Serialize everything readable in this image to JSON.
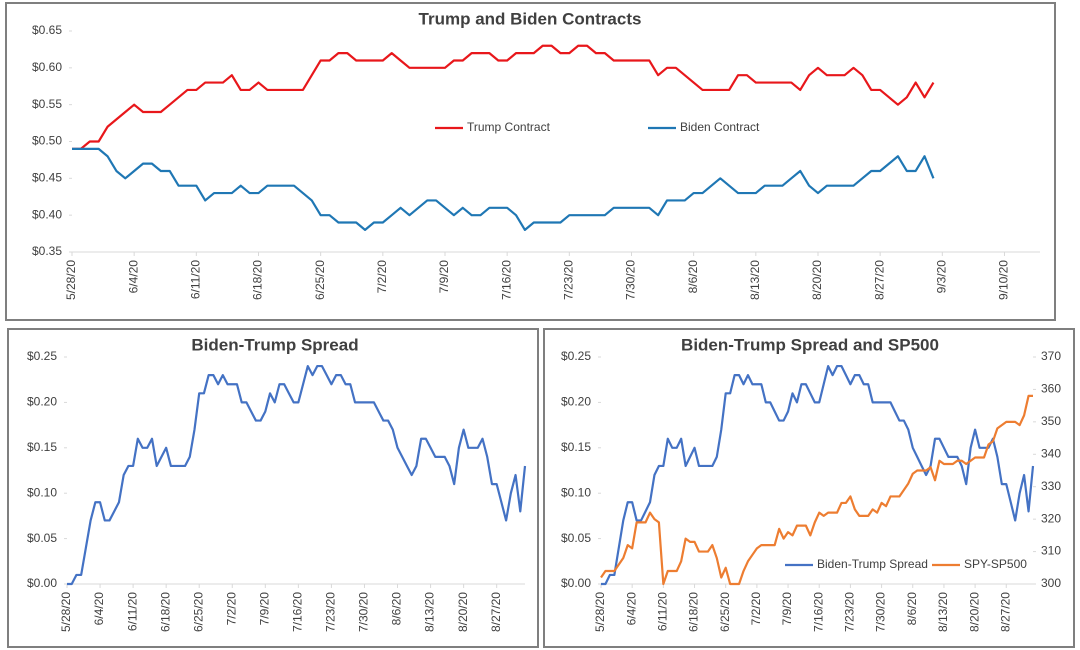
{
  "chart_data": [
    {
      "type": "line",
      "title": "Trump and Biden Contracts",
      "x": [
        "5/28/20",
        "5/29/20",
        "5/30/20",
        "5/31/20",
        "6/1/20",
        "6/2/20",
        "6/3/20",
        "6/4/20",
        "6/5/20",
        "6/6/20",
        "6/7/20",
        "6/8/20",
        "6/9/20",
        "6/10/20",
        "6/11/20",
        "6/12/20",
        "6/13/20",
        "6/14/20",
        "6/15/20",
        "6/16/20",
        "6/17/20",
        "6/18/20",
        "6/19/20",
        "6/20/20",
        "6/21/20",
        "6/22/20",
        "6/23/20",
        "6/24/20",
        "6/25/20",
        "6/26/20",
        "6/27/20",
        "6/28/20",
        "6/29/20",
        "6/30/20",
        "7/1/20",
        "7/2/20",
        "7/3/20",
        "7/4/20",
        "7/5/20",
        "7/6/20",
        "7/7/20",
        "7/8/20",
        "7/9/20",
        "7/10/20",
        "7/11/20",
        "7/12/20",
        "7/13/20",
        "7/14/20",
        "7/15/20",
        "7/16/20",
        "7/17/20",
        "7/18/20",
        "7/19/20",
        "7/20/20",
        "7/21/20",
        "7/22/20",
        "7/23/20",
        "7/24/20",
        "7/25/20",
        "7/26/20",
        "7/27/20",
        "7/28/20",
        "7/29/20",
        "7/30/20",
        "7/31/20",
        "8/1/20",
        "8/2/20",
        "8/3/20",
        "8/4/20",
        "8/5/20",
        "8/6/20",
        "8/7/20",
        "8/8/20",
        "8/9/20",
        "8/10/20",
        "8/11/20",
        "8/12/20",
        "8/13/20",
        "8/14/20",
        "8/15/20",
        "8/16/20",
        "8/17/20",
        "8/18/20",
        "8/19/20",
        "8/20/20",
        "8/21/20",
        "8/22/20",
        "8/23/20",
        "8/24/20",
        "8/25/20",
        "8/26/20",
        "8/27/20",
        "8/28/20",
        "8/29/20",
        "8/30/20",
        "8/31/20",
        "9/1/20",
        "9/2/20"
      ],
      "series": [
        {
          "name": "Trump Contract",
          "color": "#e8171b",
          "values": [
            0.49,
            0.49,
            0.5,
            0.5,
            0.52,
            0.53,
            0.54,
            0.55,
            0.54,
            0.54,
            0.54,
            0.55,
            0.56,
            0.57,
            0.57,
            0.58,
            0.58,
            0.58,
            0.59,
            0.57,
            0.57,
            0.58,
            0.57,
            0.57,
            0.57,
            0.57,
            0.57,
            0.59,
            0.61,
            0.61,
            0.62,
            0.62,
            0.61,
            0.61,
            0.61,
            0.61,
            0.62,
            0.61,
            0.6,
            0.6,
            0.6,
            0.6,
            0.6,
            0.61,
            0.61,
            0.62,
            0.62,
            0.62,
            0.61,
            0.61,
            0.62,
            0.62,
            0.62,
            0.63,
            0.63,
            0.62,
            0.62,
            0.63,
            0.63,
            0.62,
            0.62,
            0.61,
            0.61,
            0.61,
            0.61,
            0.61,
            0.59,
            0.6,
            0.6,
            0.59,
            0.58,
            0.57,
            0.57,
            0.57,
            0.57,
            0.59,
            0.59,
            0.58,
            0.58,
            0.58,
            0.58,
            0.58,
            0.57,
            0.59,
            0.6,
            0.59,
            0.59,
            0.59,
            0.6,
            0.59,
            0.57,
            0.57,
            0.56,
            0.55,
            0.56,
            0.58,
            0.56,
            0.58
          ]
        },
        {
          "name": "Biden Contract",
          "color": "#1f77b4",
          "values": [
            0.49,
            0.49,
            0.49,
            0.49,
            0.48,
            0.46,
            0.45,
            0.46,
            0.47,
            0.47,
            0.46,
            0.46,
            0.44,
            0.44,
            0.44,
            0.42,
            0.43,
            0.43,
            0.43,
            0.44,
            0.43,
            0.43,
            0.44,
            0.44,
            0.44,
            0.44,
            0.43,
            0.42,
            0.4,
            0.4,
            0.39,
            0.39,
            0.39,
            0.38,
            0.39,
            0.39,
            0.4,
            0.41,
            0.4,
            0.41,
            0.42,
            0.42,
            0.41,
            0.4,
            0.41,
            0.4,
            0.4,
            0.41,
            0.41,
            0.41,
            0.4,
            0.38,
            0.39,
            0.39,
            0.39,
            0.39,
            0.4,
            0.4,
            0.4,
            0.4,
            0.4,
            0.41,
            0.41,
            0.41,
            0.41,
            0.41,
            0.4,
            0.42,
            0.42,
            0.42,
            0.43,
            0.43,
            0.44,
            0.45,
            0.44,
            0.43,
            0.43,
            0.43,
            0.44,
            0.44,
            0.44,
            0.45,
            0.46,
            0.44,
            0.43,
            0.44,
            0.44,
            0.44,
            0.44,
            0.45,
            0.46,
            0.46,
            0.47,
            0.48,
            0.46,
            0.46,
            0.48,
            0.45
          ]
        }
      ],
      "xlim": [
        "5/28/20",
        "9/14/20"
      ],
      "xticks": [
        "5/28/20",
        "6/4/20",
        "6/11/20",
        "6/18/20",
        "6/25/20",
        "7/2/20",
        "7/9/20",
        "7/16/20",
        "7/23/20",
        "7/30/20",
        "8/6/20",
        "8/13/20",
        "8/20/20",
        "8/27/20",
        "9/3/20",
        "9/10/20"
      ],
      "ylim": [
        0.35,
        0.65
      ],
      "yticks": [
        {
          "value": 0.35,
          "label": "$0.35"
        },
        {
          "value": 0.4,
          "label": "$0.40"
        },
        {
          "value": 0.45,
          "label": "$0.45"
        },
        {
          "value": 0.5,
          "label": "$0.50"
        },
        {
          "value": 0.55,
          "label": "$0.55"
        },
        {
          "value": 0.6,
          "label": "$0.60"
        },
        {
          "value": 0.65,
          "label": "$0.65"
        }
      ],
      "legend": "center"
    },
    {
      "type": "line",
      "title": "Biden-Trump Spread",
      "x": [
        "5/28/20",
        "5/29/20",
        "5/30/20",
        "5/31/20",
        "6/1/20",
        "6/2/20",
        "6/3/20",
        "6/4/20",
        "6/5/20",
        "6/6/20",
        "6/7/20",
        "6/8/20",
        "6/9/20",
        "6/10/20",
        "6/11/20",
        "6/12/20",
        "6/13/20",
        "6/14/20",
        "6/15/20",
        "6/16/20",
        "6/17/20",
        "6/18/20",
        "6/19/20",
        "6/20/20",
        "6/21/20",
        "6/22/20",
        "6/23/20",
        "6/24/20",
        "6/25/20",
        "6/26/20",
        "6/27/20",
        "6/28/20",
        "6/29/20",
        "6/30/20",
        "7/1/20",
        "7/2/20",
        "7/3/20",
        "7/4/20",
        "7/5/20",
        "7/6/20",
        "7/7/20",
        "7/8/20",
        "7/9/20",
        "7/10/20",
        "7/11/20",
        "7/12/20",
        "7/13/20",
        "7/14/20",
        "7/15/20",
        "7/16/20",
        "7/17/20",
        "7/18/20",
        "7/19/20",
        "7/20/20",
        "7/21/20",
        "7/22/20",
        "7/23/20",
        "7/24/20",
        "7/25/20",
        "7/26/20",
        "7/27/20",
        "7/28/20",
        "7/29/20",
        "7/30/20",
        "7/31/20",
        "8/1/20",
        "8/2/20",
        "8/3/20",
        "8/4/20",
        "8/5/20",
        "8/6/20",
        "8/7/20",
        "8/8/20",
        "8/9/20",
        "8/10/20",
        "8/11/20",
        "8/12/20",
        "8/13/20",
        "8/14/20",
        "8/15/20",
        "8/16/20",
        "8/17/20",
        "8/18/20",
        "8/19/20",
        "8/20/20",
        "8/21/20",
        "8/22/20",
        "8/23/20",
        "8/24/20",
        "8/25/20",
        "8/26/20",
        "8/27/20",
        "8/28/20",
        "8/29/20",
        "8/30/20",
        "8/31/20",
        "9/1/20",
        "9/2/20"
      ],
      "series": [
        {
          "color": "#4472c4",
          "values": [
            0,
            0,
            0.01,
            0.01,
            0.04,
            0.07,
            0.09,
            0.09,
            0.07,
            0.07,
            0.08,
            0.09,
            0.12,
            0.13,
            0.13,
            0.16,
            0.15,
            0.15,
            0.16,
            0.13,
            0.14,
            0.15,
            0.13,
            0.13,
            0.13,
            0.13,
            0.14,
            0.17,
            0.21,
            0.21,
            0.23,
            0.23,
            0.22,
            0.23,
            0.22,
            0.22,
            0.22,
            0.2,
            0.2,
            0.19,
            0.18,
            0.18,
            0.19,
            0.21,
            0.2,
            0.22,
            0.22,
            0.21,
            0.2,
            0.2,
            0.22,
            0.24,
            0.23,
            0.24,
            0.24,
            0.23,
            0.22,
            0.23,
            0.23,
            0.22,
            0.22,
            0.2,
            0.2,
            0.2,
            0.2,
            0.2,
            0.19,
            0.18,
            0.18,
            0.17,
            0.15,
            0.14,
            0.13,
            0.12,
            0.13,
            0.16,
            0.16,
            0.15,
            0.14,
            0.14,
            0.14,
            0.13,
            0.11,
            0.15,
            0.17,
            0.15,
            0.15,
            0.15,
            0.16,
            0.14,
            0.11,
            0.11,
            0.09,
            0.07,
            0.1,
            0.12,
            0.08,
            0.13
          ]
        }
      ],
      "xlim": [
        "5/28/20",
        "9/2/20"
      ],
      "xticks": [
        "5/28/20",
        "6/4/20",
        "6/11/20",
        "6/18/20",
        "6/25/20",
        "7/2/20",
        "7/9/20",
        "7/16/20",
        "7/23/20",
        "7/30/20",
        "8/6/20",
        "8/13/20",
        "8/20/20",
        "8/27/20"
      ],
      "ylim": [
        0,
        0.25
      ],
      "yticks": [
        {
          "value": 0,
          "label": "$0.00"
        },
        {
          "value": 0.05,
          "label": "$0.05"
        },
        {
          "value": 0.1,
          "label": "$0.10"
        },
        {
          "value": 0.15,
          "label": "$0.15"
        },
        {
          "value": 0.2,
          "label": "$0.20"
        },
        {
          "value": 0.25,
          "label": "$0.25"
        }
      ]
    },
    {
      "type": "line",
      "title": "Biden-Trump Spread and SP500",
      "x": [
        "5/28/20",
        "5/29/20",
        "5/30/20",
        "5/31/20",
        "6/1/20",
        "6/2/20",
        "6/3/20",
        "6/4/20",
        "6/5/20",
        "6/6/20",
        "6/7/20",
        "6/8/20",
        "6/9/20",
        "6/10/20",
        "6/11/20",
        "6/12/20",
        "6/13/20",
        "6/14/20",
        "6/15/20",
        "6/16/20",
        "6/17/20",
        "6/18/20",
        "6/19/20",
        "6/20/20",
        "6/21/20",
        "6/22/20",
        "6/23/20",
        "6/24/20",
        "6/25/20",
        "6/26/20",
        "6/27/20",
        "6/28/20",
        "6/29/20",
        "6/30/20",
        "7/1/20",
        "7/2/20",
        "7/3/20",
        "7/4/20",
        "7/5/20",
        "7/6/20",
        "7/7/20",
        "7/8/20",
        "7/9/20",
        "7/10/20",
        "7/11/20",
        "7/12/20",
        "7/13/20",
        "7/14/20",
        "7/15/20",
        "7/16/20",
        "7/17/20",
        "7/18/20",
        "7/19/20",
        "7/20/20",
        "7/21/20",
        "7/22/20",
        "7/23/20",
        "7/24/20",
        "7/25/20",
        "7/26/20",
        "7/27/20",
        "7/28/20",
        "7/29/20",
        "7/30/20",
        "7/31/20",
        "8/1/20",
        "8/2/20",
        "8/3/20",
        "8/4/20",
        "8/5/20",
        "8/6/20",
        "8/7/20",
        "8/8/20",
        "8/9/20",
        "8/10/20",
        "8/11/20",
        "8/12/20",
        "8/13/20",
        "8/14/20",
        "8/15/20",
        "8/16/20",
        "8/17/20",
        "8/18/20",
        "8/19/20",
        "8/20/20",
        "8/21/20",
        "8/22/20",
        "8/23/20",
        "8/24/20",
        "8/25/20",
        "8/26/20",
        "8/27/20",
        "8/28/20",
        "8/29/20",
        "8/30/20",
        "8/31/20",
        "9/1/20",
        "9/2/20"
      ],
      "series": [
        {
          "name": "Biden-Trump Spread",
          "color": "#4472c4",
          "values": [
            0,
            0,
            0.01,
            0.01,
            0.04,
            0.07,
            0.09,
            0.09,
            0.07,
            0.07,
            0.08,
            0.09,
            0.12,
            0.13,
            0.13,
            0.16,
            0.15,
            0.15,
            0.16,
            0.13,
            0.14,
            0.15,
            0.13,
            0.13,
            0.13,
            0.13,
            0.14,
            0.17,
            0.21,
            0.21,
            0.23,
            0.23,
            0.22,
            0.23,
            0.22,
            0.22,
            0.22,
            0.2,
            0.2,
            0.19,
            0.18,
            0.18,
            0.19,
            0.21,
            0.2,
            0.22,
            0.22,
            0.21,
            0.2,
            0.2,
            0.22,
            0.24,
            0.23,
            0.24,
            0.24,
            0.23,
            0.22,
            0.23,
            0.23,
            0.22,
            0.22,
            0.2,
            0.2,
            0.2,
            0.2,
            0.2,
            0.19,
            0.18,
            0.18,
            0.17,
            0.15,
            0.14,
            0.13,
            0.12,
            0.13,
            0.16,
            0.16,
            0.15,
            0.14,
            0.14,
            0.14,
            0.13,
            0.11,
            0.15,
            0.17,
            0.15,
            0.15,
            0.15,
            0.16,
            0.14,
            0.11,
            0.11,
            0.09,
            0.07,
            0.1,
            0.12,
            0.08,
            0.13
          ]
        },
        {
          "name": "SPY-SP500",
          "color": "#ed7d31",
          "axis": "y2",
          "values": [
            302,
            304,
            304,
            304,
            306,
            308,
            312,
            311,
            319,
            319,
            319,
            322,
            320,
            319,
            300,
            304,
            304,
            304,
            307,
            314,
            313,
            313,
            310,
            310,
            310,
            312,
            308,
            302,
            305,
            300,
            300,
            300,
            304,
            307,
            309,
            311,
            312,
            312,
            312,
            312,
            317,
            314,
            316,
            315,
            318,
            318,
            318,
            315,
            319,
            322,
            321,
            322,
            322,
            322,
            325,
            325,
            327,
            323,
            321,
            321,
            321,
            323,
            322,
            325,
            324,
            327,
            327,
            327,
            329,
            331,
            334,
            335,
            335,
            335,
            336,
            332,
            338,
            337,
            337,
            337,
            338,
            338,
            337,
            338,
            339,
            339,
            339,
            343,
            344,
            348,
            349,
            350,
            350,
            350,
            349,
            352,
            358,
            358
          ]
        }
      ],
      "xlim": [
        "5/28/20",
        "9/2/20"
      ],
      "xticks": [
        "5/28/20",
        "6/4/20",
        "6/11/20",
        "6/18/20",
        "6/25/20",
        "7/2/20",
        "7/9/20",
        "7/16/20",
        "7/23/20",
        "7/30/20",
        "8/6/20",
        "8/13/20",
        "8/20/20",
        "8/27/20"
      ],
      "ylim": [
        0,
        0.25
      ],
      "yticks": [
        {
          "value": 0,
          "label": "$0.00"
        },
        {
          "value": 0.05,
          "label": "$0.05"
        },
        {
          "value": 0.1,
          "label": "$0.10"
        },
        {
          "value": 0.15,
          "label": "$0.15"
        },
        {
          "value": 0.2,
          "label": "$0.20"
        },
        {
          "value": 0.25,
          "label": "$0.25"
        }
      ],
      "y2lim": [
        300,
        370
      ],
      "y2ticks": [
        300,
        310,
        320,
        330,
        340,
        350,
        360,
        370
      ],
      "legend": "lower right"
    }
  ]
}
